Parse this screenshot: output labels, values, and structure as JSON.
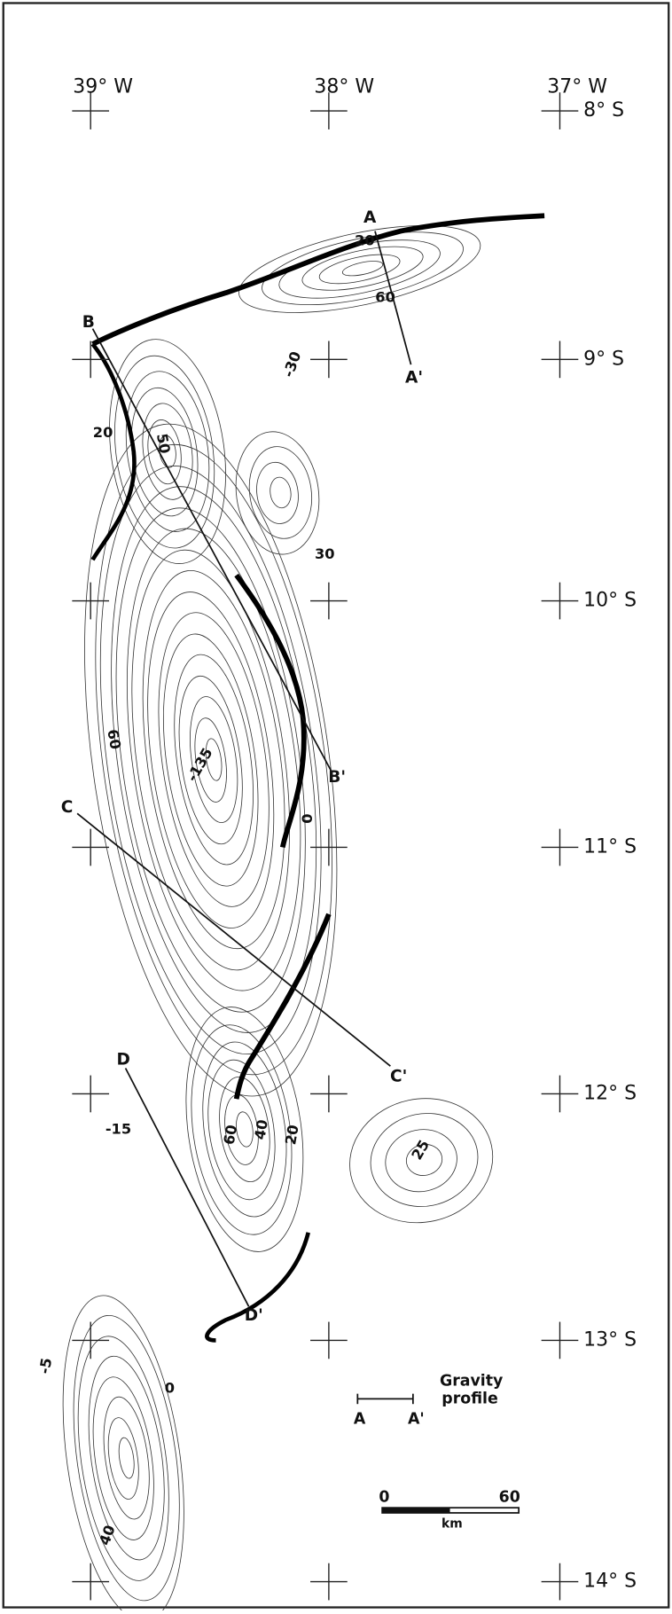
{
  "longitude_labels": [
    "39° W",
    "38° W",
    "37° W"
  ],
  "latitude_labels": [
    "8° S",
    "9° S",
    "10° S",
    "11° S",
    "12° S",
    "13° S",
    "14° S"
  ],
  "profile_labels": [
    "A",
    "A'",
    "B",
    "B'",
    "C",
    "C'",
    "D",
    "D'"
  ],
  "contour_labels": [
    "20",
    "60",
    "-30",
    "20",
    "50",
    "30",
    "60",
    "-135",
    "0",
    "-15",
    "60",
    "40",
    "20",
    "25",
    "-5",
    "0",
    "40"
  ],
  "legend": {
    "lines": [
      "Gravity",
      "profile"
    ],
    "start": "A",
    "end": "A'"
  },
  "scale_bar": {
    "start": "0",
    "end": "60",
    "unit": "km"
  }
}
